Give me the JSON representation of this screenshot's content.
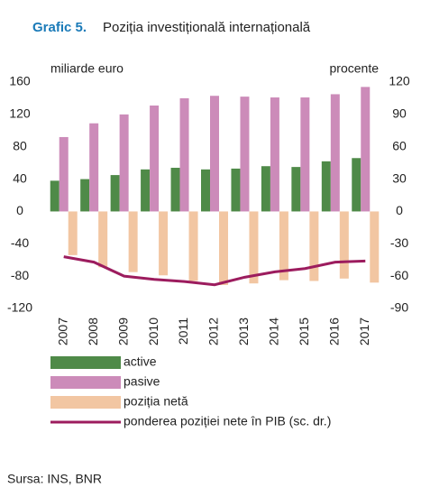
{
  "chart_data": {
    "type": "bar",
    "label": "Grafic 5.",
    "title": "Poziția investițională internațională",
    "ylabel": "miliarde euro",
    "y2label": "procente",
    "categories": [
      "2007",
      "2008",
      "2009",
      "2010",
      "2011",
      "2012",
      "2013",
      "2014",
      "2015",
      "2016",
      "2017"
    ],
    "series": [
      {
        "name": "active",
        "type": "bar",
        "color": "#4f8a48",
        "values": [
          38,
          40,
          45,
          52,
          54,
          52,
          53,
          56,
          55,
          62,
          66
        ]
      },
      {
        "name": "pasive",
        "type": "bar",
        "color": "#cc8bb9",
        "values": [
          92,
          109,
          120,
          131,
          140,
          143,
          142,
          141,
          141,
          145,
          154
        ]
      },
      {
        "name": "poziția netă",
        "type": "bar",
        "color": "#f2c6a2",
        "values": [
          -54,
          -69,
          -75,
          -79,
          -86,
          -91,
          -89,
          -85,
          -86,
          -83,
          -88
        ]
      },
      {
        "name": "ponderea poziției nete în PIB (sc. dr.)",
        "type": "line",
        "axis": "y2",
        "color": "#9c1c5e",
        "values": [
          -42,
          -47,
          -60,
          -63,
          -65,
          -68,
          -61,
          -56,
          -53,
          -47,
          -46
        ]
      }
    ],
    "ylim": [
      -120,
      160
    ],
    "yticks": [
      -120,
      -80,
      -40,
      0,
      40,
      80,
      120,
      160
    ],
    "y2lim": [
      -90,
      120
    ],
    "y2ticks": [
      -90,
      -60,
      -30,
      0,
      30,
      60,
      90,
      120
    ],
    "grid": false,
    "source": "Sursa: INS, BNR"
  }
}
